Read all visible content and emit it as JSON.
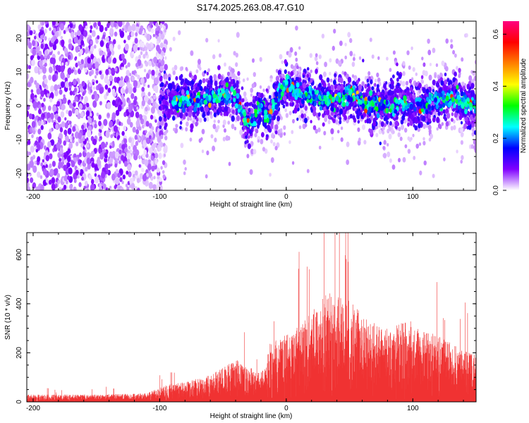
{
  "title": "S174.2025.263.08.47.G10",
  "chart_data": [
    {
      "type": "heatmap",
      "xlabel": "Height of straight line (km)",
      "ylabel": "Frequency (Hz)",
      "xlim": [
        -205,
        150
      ],
      "ylim": [
        -25,
        25
      ],
      "xticks": [
        -200,
        -100,
        0,
        100
      ],
      "yticks": [
        -20,
        -10,
        0,
        10,
        20
      ],
      "colorbar": {
        "label": "Normalized spectral amplitude",
        "range": [
          0,
          0.65
        ],
        "ticks": [
          0.0,
          0.2,
          0.4,
          0.6
        ],
        "colormap": [
          "#ffffff",
          "#8000ff",
          "#0000ff",
          "#00ffff",
          "#00ff00",
          "#ffff00",
          "#ff8000",
          "#ff0000",
          "#ff0080"
        ]
      },
      "ridge": {
        "x": [
          -100,
          -80,
          -60,
          -50,
          -45,
          -40,
          -35,
          -30,
          -25,
          -20,
          -15,
          -10,
          -5,
          0,
          5,
          10,
          20,
          30,
          40,
          50,
          60,
          70,
          80,
          90,
          100,
          110,
          120,
          130,
          140,
          150
        ],
        "y": [
          1,
          1.5,
          2,
          3,
          3.5,
          2,
          -2,
          -5,
          -3,
          1,
          -4,
          0,
          3,
          7,
          5,
          4,
          3,
          2,
          2,
          4,
          1,
          0,
          0,
          1,
          0,
          1,
          2,
          2,
          1,
          0
        ]
      }
    },
    {
      "type": "line",
      "xlabel": "Height of straight line (km)",
      "ylabel": "SNR (10 * v/v)",
      "xlim": [
        -205,
        150
      ],
      "ylim": [
        0,
        690
      ],
      "xticks": [
        -200,
        -100,
        0,
        100
      ],
      "yticks": [
        0,
        200,
        400,
        600
      ],
      "color": "#f03232",
      "envelope": {
        "x": [
          -205,
          -150,
          -110,
          -100,
          -90,
          -80,
          -70,
          -60,
          -50,
          -40,
          -30,
          -20,
          -16,
          -14,
          -10,
          0,
          10,
          20,
          30,
          40,
          50,
          60,
          70,
          80,
          90,
          100,
          110,
          120,
          130,
          140,
          150
        ],
        "y": [
          30,
          30,
          35,
          60,
          75,
          80,
          95,
          110,
          140,
          175,
          150,
          120,
          160,
          240,
          250,
          275,
          310,
          380,
          440,
          455,
          420,
          360,
          320,
          300,
          320,
          330,
          290,
          270,
          240,
          210,
          190
        ]
      }
    }
  ]
}
